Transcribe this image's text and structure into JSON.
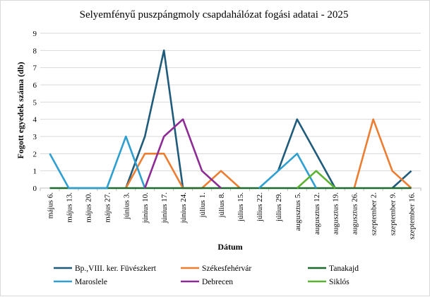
{
  "chart_data": {
    "type": "line",
    "title": "Selyemfényű puszpángmoly csapdahálózat fogási adatai - 2025",
    "xlabel": "Dátum",
    "ylabel": "Fogott egyedek száma (db)",
    "ylim": [
      0,
      9
    ],
    "yticks": [
      "0",
      "1",
      "2",
      "3",
      "4",
      "5",
      "6",
      "7",
      "8",
      "9"
    ],
    "grid": "horizontal",
    "legend_position": "bottom",
    "categories": [
      "május 6.",
      "május 13.",
      "május 20.",
      "május 27.",
      "június 3.",
      "június 10.",
      "június 17.",
      "június 24.",
      "július 1.",
      "július 8.",
      "július 15.",
      "július 22.",
      "július 29.",
      "augusztus 5.",
      "augusztus 12.",
      "augusztus 19.",
      "augusztus 26.",
      "szeptember 2.",
      "szeptember 9.",
      "szeptember 16."
    ],
    "series": [
      {
        "name": "Bp.,VIII. ker. Füvészkert",
        "color": "#1f5b7a",
        "values": [
          null,
          null,
          null,
          null,
          0,
          3,
          8,
          0,
          null,
          null,
          null,
          null,
          1,
          4,
          2,
          0,
          null,
          null,
          0,
          1
        ]
      },
      {
        "name": "Székesfehérvár",
        "color": "#ed7d31",
        "values": [
          null,
          null,
          null,
          null,
          0,
          2,
          2,
          0,
          0,
          1,
          0,
          null,
          null,
          null,
          null,
          null,
          0,
          4,
          1,
          0
        ]
      },
      {
        "name": "Tanakajd",
        "color": "#1e6b30",
        "values": [
          0,
          0,
          0,
          0,
          0,
          0,
          0,
          0,
          0,
          0,
          0,
          0,
          0,
          0,
          0,
          0,
          0,
          0,
          0,
          0
        ]
      },
      {
        "name": "Maroslele",
        "color": "#2e9fd0",
        "values": [
          2,
          0,
          0,
          0,
          3,
          0,
          null,
          null,
          null,
          null,
          null,
          0,
          1,
          2,
          0,
          null,
          null,
          null,
          null,
          null
        ]
      },
      {
        "name": "Debrecen",
        "color": "#8e2c96",
        "values": [
          null,
          null,
          null,
          null,
          null,
          0,
          3,
          4,
          1,
          0,
          null,
          null,
          null,
          null,
          null,
          null,
          null,
          null,
          null,
          null
        ]
      },
      {
        "name": "Siklós",
        "color": "#5cb332",
        "values": [
          null,
          null,
          null,
          null,
          null,
          null,
          null,
          null,
          null,
          null,
          null,
          null,
          null,
          0,
          1,
          0,
          null,
          null,
          null,
          null
        ]
      }
    ]
  }
}
